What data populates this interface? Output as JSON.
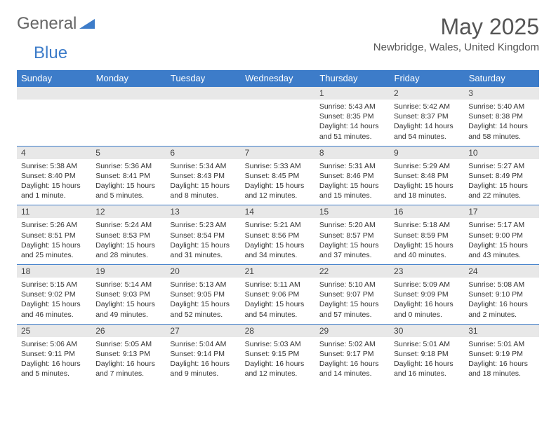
{
  "brand": {
    "part1": "General",
    "part2": "Blue"
  },
  "title": "May 2025",
  "location": "Newbridge, Wales, United Kingdom",
  "colors": {
    "header_bg": "#3d7cc9",
    "daynum_bg": "#e8e8e8",
    "text": "#333333"
  },
  "day_headers": [
    "Sunday",
    "Monday",
    "Tuesday",
    "Wednesday",
    "Thursday",
    "Friday",
    "Saturday"
  ],
  "weeks": [
    [
      null,
      null,
      null,
      null,
      {
        "n": "1",
        "sr": "5:43 AM",
        "ss": "8:35 PM",
        "dl": "14 hours and 51 minutes."
      },
      {
        "n": "2",
        "sr": "5:42 AM",
        "ss": "8:37 PM",
        "dl": "14 hours and 54 minutes."
      },
      {
        "n": "3",
        "sr": "5:40 AM",
        "ss": "8:38 PM",
        "dl": "14 hours and 58 minutes."
      }
    ],
    [
      {
        "n": "4",
        "sr": "5:38 AM",
        "ss": "8:40 PM",
        "dl": "15 hours and 1 minute."
      },
      {
        "n": "5",
        "sr": "5:36 AM",
        "ss": "8:41 PM",
        "dl": "15 hours and 5 minutes."
      },
      {
        "n": "6",
        "sr": "5:34 AM",
        "ss": "8:43 PM",
        "dl": "15 hours and 8 minutes."
      },
      {
        "n": "7",
        "sr": "5:33 AM",
        "ss": "8:45 PM",
        "dl": "15 hours and 12 minutes."
      },
      {
        "n": "8",
        "sr": "5:31 AM",
        "ss": "8:46 PM",
        "dl": "15 hours and 15 minutes."
      },
      {
        "n": "9",
        "sr": "5:29 AM",
        "ss": "8:48 PM",
        "dl": "15 hours and 18 minutes."
      },
      {
        "n": "10",
        "sr": "5:27 AM",
        "ss": "8:49 PM",
        "dl": "15 hours and 22 minutes."
      }
    ],
    [
      {
        "n": "11",
        "sr": "5:26 AM",
        "ss": "8:51 PM",
        "dl": "15 hours and 25 minutes."
      },
      {
        "n": "12",
        "sr": "5:24 AM",
        "ss": "8:53 PM",
        "dl": "15 hours and 28 minutes."
      },
      {
        "n": "13",
        "sr": "5:23 AM",
        "ss": "8:54 PM",
        "dl": "15 hours and 31 minutes."
      },
      {
        "n": "14",
        "sr": "5:21 AM",
        "ss": "8:56 PM",
        "dl": "15 hours and 34 minutes."
      },
      {
        "n": "15",
        "sr": "5:20 AM",
        "ss": "8:57 PM",
        "dl": "15 hours and 37 minutes."
      },
      {
        "n": "16",
        "sr": "5:18 AM",
        "ss": "8:59 PM",
        "dl": "15 hours and 40 minutes."
      },
      {
        "n": "17",
        "sr": "5:17 AM",
        "ss": "9:00 PM",
        "dl": "15 hours and 43 minutes."
      }
    ],
    [
      {
        "n": "18",
        "sr": "5:15 AM",
        "ss": "9:02 PM",
        "dl": "15 hours and 46 minutes."
      },
      {
        "n": "19",
        "sr": "5:14 AM",
        "ss": "9:03 PM",
        "dl": "15 hours and 49 minutes."
      },
      {
        "n": "20",
        "sr": "5:13 AM",
        "ss": "9:05 PM",
        "dl": "15 hours and 52 minutes."
      },
      {
        "n": "21",
        "sr": "5:11 AM",
        "ss": "9:06 PM",
        "dl": "15 hours and 54 minutes."
      },
      {
        "n": "22",
        "sr": "5:10 AM",
        "ss": "9:07 PM",
        "dl": "15 hours and 57 minutes."
      },
      {
        "n": "23",
        "sr": "5:09 AM",
        "ss": "9:09 PM",
        "dl": "16 hours and 0 minutes."
      },
      {
        "n": "24",
        "sr": "5:08 AM",
        "ss": "9:10 PM",
        "dl": "16 hours and 2 minutes."
      }
    ],
    [
      {
        "n": "25",
        "sr": "5:06 AM",
        "ss": "9:11 PM",
        "dl": "16 hours and 5 minutes."
      },
      {
        "n": "26",
        "sr": "5:05 AM",
        "ss": "9:13 PM",
        "dl": "16 hours and 7 minutes."
      },
      {
        "n": "27",
        "sr": "5:04 AM",
        "ss": "9:14 PM",
        "dl": "16 hours and 9 minutes."
      },
      {
        "n": "28",
        "sr": "5:03 AM",
        "ss": "9:15 PM",
        "dl": "16 hours and 12 minutes."
      },
      {
        "n": "29",
        "sr": "5:02 AM",
        "ss": "9:17 PM",
        "dl": "16 hours and 14 minutes."
      },
      {
        "n": "30",
        "sr": "5:01 AM",
        "ss": "9:18 PM",
        "dl": "16 hours and 16 minutes."
      },
      {
        "n": "31",
        "sr": "5:01 AM",
        "ss": "9:19 PM",
        "dl": "16 hours and 18 minutes."
      }
    ]
  ],
  "labels": {
    "sunrise": "Sunrise:",
    "sunset": "Sunset:",
    "daylight": "Daylight:"
  }
}
